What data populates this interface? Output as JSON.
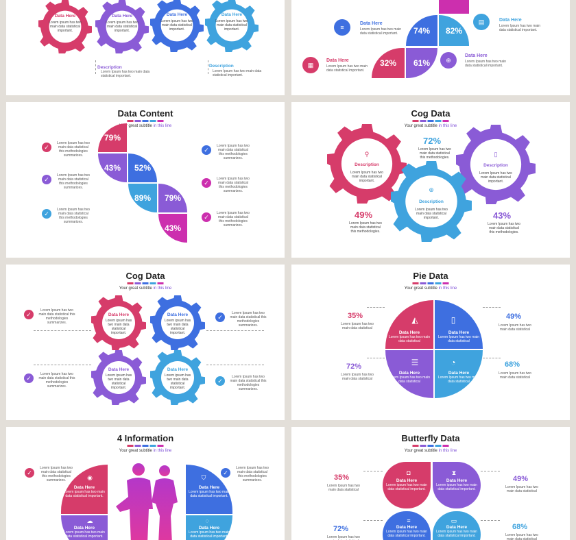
{
  "colors": {
    "pink": "#d63c6a",
    "purple": "#8a5bd6",
    "blue": "#3e6fe0",
    "lightblue": "#3fa3de",
    "magenta": "#cc2fae"
  },
  "common": {
    "subtitle_pre": "Your great subtitle ",
    "subtitle_hl": "in this line",
    "data_here": "Data Here",
    "lorem_short": "Lorem ipsum has two main data statistical important.",
    "lorem_long": "Lorem Ipsum has two main data statistical this methodologies summarizes.",
    "lorem_cog": "Lorem Ipsum has two main data statistical this methodologies.",
    "lorem_pie": "Lorem Ipsum has two main data statistical",
    "description": "Description",
    "lorem_desc": "Lorem Ipsum has two main data statistical important."
  },
  "slide1": {
    "gear_labels": [
      "Data Here",
      "Data Here",
      "Data Here",
      "Data Here"
    ]
  },
  "slide2": {
    "values": [
      "74%",
      "82%",
      "32%",
      "61%"
    ],
    "labels": [
      "Data Here",
      "Data Here",
      "Data Here",
      "Data Here"
    ]
  },
  "slide3": {
    "title": "Data Content",
    "values": [
      "79%",
      "43%",
      "52%",
      "89%",
      "79%",
      "43%"
    ]
  },
  "slide4": {
    "title": "Cog Data",
    "values": [
      "72%",
      "49%",
      "43%"
    ]
  },
  "slide5": {
    "title": "Cog Data"
  },
  "slide6": {
    "title": "Pie Data",
    "values": [
      "35%",
      "49%",
      "72%",
      "68%"
    ]
  },
  "slide7": {
    "title": "4 Information"
  },
  "slide8": {
    "title": "Butterfly Data",
    "values": [
      "35%",
      "49%",
      "72%",
      "68%"
    ]
  }
}
